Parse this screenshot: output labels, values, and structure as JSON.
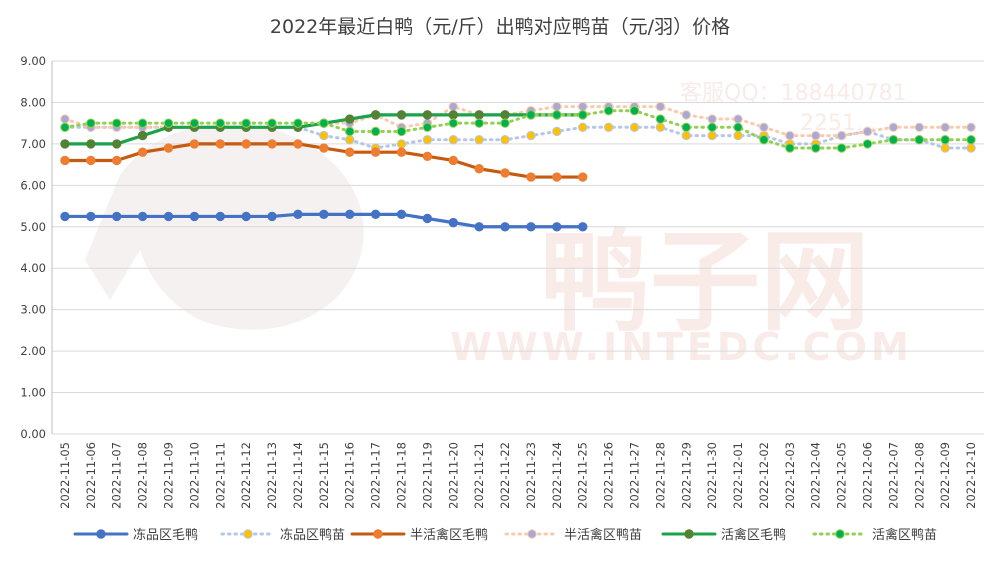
{
  "chart_data": {
    "type": "line",
    "title": "2022年最近白鸭（元/斤）出鸭对应鸭苗（元/羽）价格",
    "ylim": [
      0,
      9
    ],
    "yticks": [
      "0.00",
      "1.00",
      "2.00",
      "3.00",
      "4.00",
      "5.00",
      "6.00",
      "7.00",
      "8.00",
      "9.00"
    ],
    "grid": true,
    "legend_position": "bottom",
    "categories": [
      "2022-11-05",
      "2022-11-06",
      "2022-11-07",
      "2022-11-08",
      "2022-11-09",
      "2022-11-10",
      "2022-11-11",
      "2022-11-12",
      "2022-11-13",
      "2022-11-14",
      "2022-11-15",
      "2022-11-16",
      "2022-11-17",
      "2022-11-18",
      "2022-11-19",
      "2022-11-20",
      "2022-11-21",
      "2022-11-22",
      "2022-11-23",
      "2022-11-24",
      "2022-11-25",
      "2022-11-26",
      "2022-11-27",
      "2022-11-28",
      "2022-11-29",
      "2022-11-30",
      "2022-12-01",
      "2022-12-02",
      "2022-12-03",
      "2022-12-04",
      "2022-12-05",
      "2022-12-06",
      "2022-12-07",
      "2022-12-08",
      "2022-12-09",
      "2022-12-10"
    ],
    "series": [
      {
        "name": "冻品区毛鸭",
        "color": "#4472c4",
        "marker_color": "#4472c4",
        "style": "solid",
        "values": [
          5.25,
          5.25,
          5.25,
          5.25,
          5.25,
          5.25,
          5.25,
          5.25,
          5.25,
          5.3,
          5.3,
          5.3,
          5.3,
          5.3,
          5.2,
          5.1,
          5.0,
          5.0,
          5.0,
          5.0,
          5.0,
          null,
          null,
          null,
          null,
          null,
          null,
          null,
          null,
          null,
          null,
          null,
          null,
          null,
          null,
          null
        ]
      },
      {
        "name": "冻品区鸭苗",
        "color": "#b4c7e7",
        "marker_color": "#ffc000",
        "style": "dotted",
        "values": [
          7.4,
          7.4,
          7.4,
          7.4,
          7.4,
          7.4,
          7.4,
          7.4,
          7.4,
          7.4,
          7.2,
          7.1,
          6.9,
          7.0,
          7.1,
          7.1,
          7.1,
          7.1,
          7.2,
          7.3,
          7.4,
          7.4,
          7.4,
          7.4,
          7.2,
          7.2,
          7.2,
          7.2,
          7.0,
          7.0,
          7.2,
          7.3,
          7.1,
          7.1,
          6.9,
          6.9
        ]
      },
      {
        "name": "半活禽区毛鸭",
        "color": "#c55a11",
        "marker_color": "#ed7d31",
        "style": "solid",
        "values": [
          6.6,
          6.6,
          6.6,
          6.8,
          6.9,
          7.0,
          7.0,
          7.0,
          7.0,
          7.0,
          6.9,
          6.8,
          6.8,
          6.8,
          6.7,
          6.6,
          6.4,
          6.3,
          6.2,
          6.2,
          6.2,
          null,
          null,
          null,
          null,
          null,
          null,
          null,
          null,
          null,
          null,
          null,
          null,
          null,
          null,
          null
        ]
      },
      {
        "name": "半活禽区鸭苗",
        "color": "#f8cbad",
        "marker_color": "#a9a9d6",
        "style": "dotted",
        "values": [
          7.6,
          7.4,
          7.4,
          7.4,
          7.4,
          7.4,
          7.4,
          7.4,
          7.4,
          7.4,
          7.5,
          7.5,
          7.7,
          7.4,
          7.5,
          7.9,
          7.7,
          7.7,
          7.8,
          7.9,
          7.9,
          7.9,
          7.9,
          7.9,
          7.7,
          7.6,
          7.6,
          7.4,
          7.2,
          7.2,
          7.2,
          7.3,
          7.4,
          7.4,
          7.4,
          7.4
        ]
      },
      {
        "name": "活禽区毛鸭",
        "color": "#1aa34a",
        "marker_color": "#548235",
        "style": "solid",
        "values": [
          7.0,
          7.0,
          7.0,
          7.2,
          7.4,
          7.4,
          7.4,
          7.4,
          7.4,
          7.4,
          7.5,
          7.6,
          7.7,
          7.7,
          7.7,
          7.7,
          7.7,
          7.7,
          7.7,
          7.7,
          7.7,
          null,
          null,
          null,
          null,
          null,
          null,
          null,
          null,
          null,
          null,
          null,
          null,
          null,
          null,
          null
        ]
      },
      {
        "name": "活禽区鸭苗",
        "color": "#92d050",
        "marker_color": "#00b050",
        "style": "dotted",
        "values": [
          7.4,
          7.5,
          7.5,
          7.5,
          7.5,
          7.5,
          7.5,
          7.5,
          7.5,
          7.5,
          7.5,
          7.3,
          7.3,
          7.3,
          7.4,
          7.5,
          7.5,
          7.5,
          7.7,
          7.7,
          7.7,
          7.8,
          7.8,
          7.6,
          7.4,
          7.4,
          7.4,
          7.1,
          6.9,
          6.9,
          6.9,
          7.0,
          7.1,
          7.1,
          7.1,
          7.1
        ]
      }
    ]
  },
  "watermark": {
    "contact_line1": "客服QQ：188440781",
    "contact_line2": "2251...",
    "brand": "鸭子网",
    "url": "WWW.INTEDC.COM"
  }
}
